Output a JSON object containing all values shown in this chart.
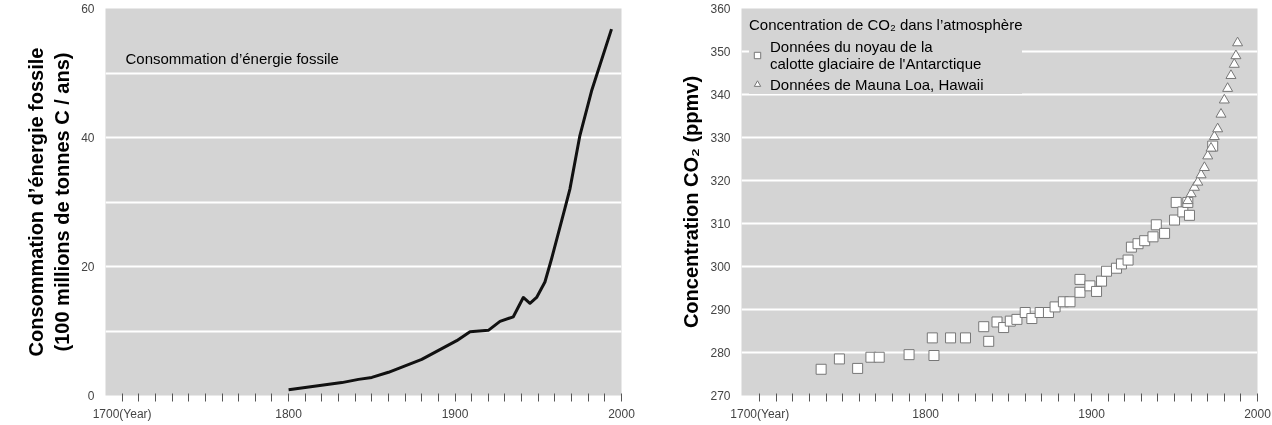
{
  "chart_data": [
    {
      "type": "line",
      "title": "Consommation d’énergie fossile",
      "ylabel": "Consommation d’énergie fossile\n(100 millions de tonnes C / ans)",
      "x": [
        1800,
        1832,
        1842,
        1850,
        1860,
        1880,
        1901,
        1909,
        1920,
        1927,
        1935,
        1941,
        1945,
        1949,
        1954,
        1958,
        1966,
        1969,
        1975,
        1982,
        1994
      ],
      "series": [
        {
          "color": "#111111",
          "values": [
            0.9,
            2.0,
            2.5,
            2.8,
            3.6,
            5.6,
            8.5,
            9.9,
            10.1,
            11.5,
            12.2,
            15.2,
            14.3,
            15.2,
            17.6,
            21.2,
            29,
            32,
            40.3,
            47.2,
            56.8
          ]
        }
      ],
      "xlim": [
        1690,
        2000
      ],
      "ylim": [
        0,
        60
      ],
      "xticks": [
        {
          "value": 1700,
          "label": "1700(Year)"
        },
        {
          "value": 1710,
          "label": null
        },
        {
          "value": 1720,
          "label": null
        },
        {
          "value": 1730,
          "label": null
        },
        {
          "value": 1740,
          "label": null
        },
        {
          "value": 1750,
          "label": null
        },
        {
          "value": 1760,
          "label": null
        },
        {
          "value": 1770,
          "label": null
        },
        {
          "value": 1780,
          "label": null
        },
        {
          "value": 1790,
          "label": null
        },
        1800,
        {
          "value": 1810,
          "label": null
        },
        {
          "value": 1820,
          "label": null
        },
        {
          "value": 1830,
          "label": null
        },
        {
          "value": 1840,
          "label": null
        },
        {
          "value": 1850,
          "label": null
        },
        {
          "value": 1860,
          "label": null
        },
        {
          "value": 1870,
          "label": null
        },
        {
          "value": 1880,
          "label": null
        },
        {
          "value": 1890,
          "label": null
        },
        1900,
        {
          "value": 1910,
          "label": null
        },
        {
          "value": 1920,
          "label": null
        },
        {
          "value": 1930,
          "label": null
        },
        {
          "value": 1940,
          "label": null
        },
        {
          "value": 1950,
          "label": null
        },
        {
          "value": 1960,
          "label": null
        },
        {
          "value": 1970,
          "label": null
        },
        {
          "value": 1980,
          "label": null
        },
        {
          "value": 1990,
          "label": null
        },
        2000
      ],
      "yticks": [
        0,
        {
          "value": 10,
          "label": null
        },
        20,
        {
          "value": 30,
          "label": null
        },
        40,
        {
          "value": 50,
          "label": null
        },
        60
      ],
      "grid": "y",
      "line_style": "solid"
    },
    {
      "type": "scatter",
      "ylabel": "Concentration CO₂ (ppmv)",
      "legend_title": "Concentration de CO₂ dans l’atmosphère",
      "legend": "top left",
      "series": [
        {
          "name": "Données du noyau de la\ncalotte glaciaire de l'Antarctique",
          "color": "#ffffff",
          "marker": "square",
          "x": [
            1737,
            1748,
            1759,
            1767,
            1772,
            1790,
            1804,
            1805,
            1815,
            1824,
            1835,
            1838,
            1843,
            1847,
            1851,
            1855,
            1860,
            1864,
            1869,
            1874,
            1878,
            1883,
            1887,
            1893,
            1893,
            1899,
            1903,
            1906,
            1909,
            1915,
            1918,
            1922,
            1924,
            1928,
            1932,
            1937,
            1939,
            1944,
            1950,
            1951,
            1955,
            1958,
            1959,
            1973
          ],
          "values": [
            276.1,
            278.5,
            276.3,
            278.9,
            278.9,
            279.5,
            283.4,
            279.3,
            283.4,
            283.4,
            286.0,
            282.6,
            287.1,
            285.8,
            287.3,
            287.7,
            289.3,
            287.9,
            289.3,
            289.3,
            290.6,
            291.8,
            291.8,
            294.0,
            297.0,
            295.5,
            294.2,
            296.6,
            298.9,
            299.6,
            300.6,
            301.5,
            304.5,
            305.3,
            306.0,
            306.9,
            309.7,
            307.7,
            310.8,
            314.9,
            312.7,
            314.9,
            311.9,
            328.0
          ]
        },
        {
          "name": "Données de Mauna Loa, Hawaii",
          "color": "#ffffff",
          "marker": "triangle",
          "x": [
            1958,
            1960,
            1962,
            1964,
            1966,
            1968,
            1970,
            1972,
            1974,
            1976,
            1978,
            1980,
            1982,
            1984,
            1986,
            1987,
            1988
          ],
          "values": [
            315.3,
            316.9,
            318.4,
            319.6,
            321.3,
            323.0,
            325.7,
            327.5,
            330.2,
            332.0,
            335.4,
            338.7,
            341.4,
            344.4,
            347.0,
            349.0,
            352.0
          ]
        }
      ],
      "xlim": [
        1689,
        2000
      ],
      "ylim": [
        270,
        360
      ],
      "xticks": [
        {
          "value": 1700,
          "label": "1700(Year)"
        },
        {
          "value": 1710,
          "label": null
        },
        {
          "value": 1720,
          "label": null
        },
        {
          "value": 1730,
          "label": null
        },
        {
          "value": 1740,
          "label": null
        },
        {
          "value": 1750,
          "label": null
        },
        {
          "value": 1760,
          "label": null
        },
        {
          "value": 1770,
          "label": null
        },
        {
          "value": 1780,
          "label": null
        },
        {
          "value": 1790,
          "label": null
        },
        1800,
        {
          "value": 1810,
          "label": null
        },
        {
          "value": 1820,
          "label": null
        },
        {
          "value": 1830,
          "label": null
        },
        {
          "value": 1840,
          "label": null
        },
        {
          "value": 1850,
          "label": null
        },
        {
          "value": 1860,
          "label": null
        },
        {
          "value": 1870,
          "label": null
        },
        {
          "value": 1880,
          "label": null
        },
        {
          "value": 1890,
          "label": null
        },
        1900,
        {
          "value": 1910,
          "label": null
        },
        {
          "value": 1920,
          "label": null
        },
        {
          "value": 1930,
          "label": null
        },
        {
          "value": 1940,
          "label": null
        },
        {
          "value": 1950,
          "label": null
        },
        {
          "value": 1960,
          "label": null
        },
        {
          "value": 1970,
          "label": null
        },
        {
          "value": 1980,
          "label": null
        },
        {
          "value": 1990,
          "label": null
        },
        2000
      ],
      "yticks": [
        270,
        280,
        290,
        300,
        310,
        320,
        330,
        340,
        350,
        360
      ],
      "grid": "y"
    }
  ]
}
